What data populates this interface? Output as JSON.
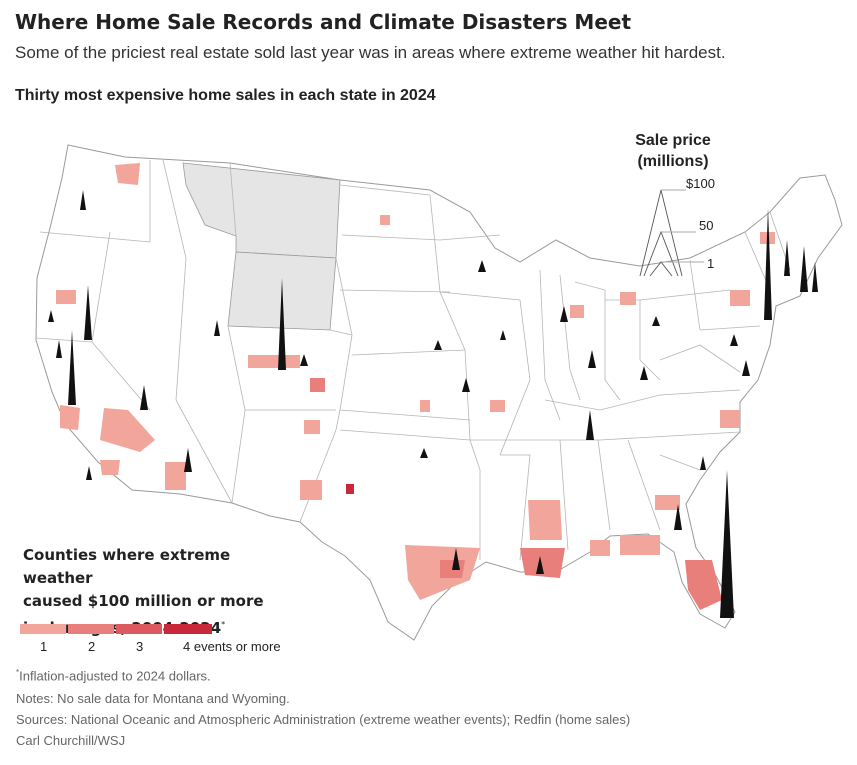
{
  "header": {
    "title": "Where Home Sale Records and Climate Disasters Meet",
    "subtitle": "Some of the priciest real estate sold last year was in areas where extreme weather hit hardest.",
    "chart_title": "Thirty most expensive home sales in each state in 2024"
  },
  "size_legend": {
    "title_line1": "Sale price",
    "title_line2": "(millions)",
    "ticks": [
      "$100",
      "50",
      "1"
    ]
  },
  "color_legend": {
    "title_lines": [
      "Counties where extreme weather",
      "caused $100 million or more",
      "in damages, 2004-2024"
    ],
    "footnote_marker": "*",
    "classes": [
      {
        "label": "1",
        "color": "#f2a59a"
      },
      {
        "label": "2",
        "color": "#e87f7b"
      },
      {
        "label": "3",
        "color": "#dc5a5f"
      },
      {
        "label": "4 events or more",
        "color": "#c8283a"
      }
    ]
  },
  "colors": {
    "no_data_state": "#e5e5e5",
    "state_border": "#9a9a9a",
    "spike_fill": "#111111"
  },
  "footer": {
    "marker": "*",
    "note1": "Inflation-adjusted to 2024 dollars.",
    "note2": "Notes: No sale data for Montana and Wyoming.",
    "note3": "Sources: National Oceanic and Atmospheric Administration (extreme weather events); Redfin (home sales)",
    "credit": "Carl Churchill/WSJ"
  }
}
